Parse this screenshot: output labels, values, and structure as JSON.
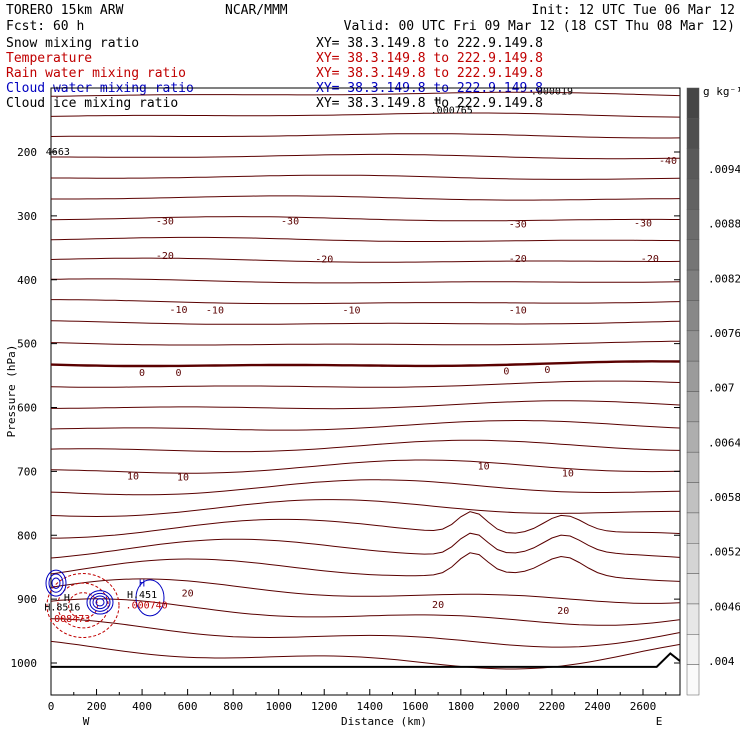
{
  "header": {
    "model": "TORERO  15km ARW",
    "center": "NCAR/MMM",
    "init": "Init: 12 UTC Tue 06 Mar 12",
    "fcst": "Fcst:   60 h",
    "valid": "Valid: 00 UTC Fri 09 Mar 12 (18 CST Thu 08 Mar 12)",
    "fields": [
      {
        "name": "Snow mixing ratio",
        "color": "#000000",
        "xy": "XY=  38.3.149.8 to 222.9.149.8"
      },
      {
        "name": "Temperature",
        "color": "#c00000",
        "xy": "XY=  38.3.149.8 to 222.9.149.8"
      },
      {
        "name": "Rain water mixing ratio",
        "color": "#c00000",
        "xy": "XY=  38.3.149.8 to 222.9.149.8"
      },
      {
        "name": "Cloud water mixing ratio",
        "color": "#0000c0",
        "xy": "XY=  38.3.149.8 to 222.9.149.8"
      },
      {
        "name": "Cloud ice mixing ratio",
        "color": "#000000",
        "xy": "XY=  38.3.149.8 to 222.9.149.8"
      }
    ]
  },
  "chart_data": {
    "type": "contour-cross-section",
    "xlabel": "Distance (km)",
    "ylabel": "Pressure (hPa)",
    "xlim": [
      0,
      2780
    ],
    "ylim": [
      1050,
      100
    ],
    "x_ticks": [
      0,
      200,
      400,
      600,
      800,
      1000,
      1200,
      1400,
      1600,
      1800,
      2000,
      2200,
      2400,
      2600
    ],
    "y_ticks": [
      200,
      300,
      400,
      500,
      600,
      700,
      800,
      900,
      1000
    ],
    "west_label": "W",
    "east_label": "E",
    "temperature_isotherms": [
      {
        "level": -30,
        "labels_at_x": [
          500,
          1050,
          2050,
          2600
        ]
      },
      {
        "level": -20,
        "labels_at_x": [
          500,
          1200,
          2050,
          2630
        ]
      },
      {
        "level": -10,
        "labels_at_x": [
          560,
          720,
          1320,
          2050
        ]
      },
      {
        "level": 0,
        "labels_at_x": [
          400,
          560,
          2000,
          2180
        ]
      },
      {
        "level": 10,
        "labels_at_x": [
          360,
          580,
          1900,
          2270
        ]
      },
      {
        "level": 20,
        "labels_at_x": [
          600,
          1700,
          2250
        ]
      },
      {
        "level": -40,
        "labels_at_x": [
          2720
        ]
      }
    ],
    "annotations": [
      {
        "text": "H",
        "x": 1700,
        "p": 125
      },
      {
        "text": ".000765",
        "x": 1760,
        "p": 140
      },
      {
        "text": ".000019",
        "x": 2200,
        "p": 110
      },
      {
        "text": "4663",
        "x": 30,
        "p": 205
      },
      {
        "text": "H",
        "x": 70,
        "p": 903
      },
      {
        "text": "H.8516",
        "x": 50,
        "p": 918
      },
      {
        "text": ".008473",
        "x": 80,
        "p": 936
      },
      {
        "text": "H",
        "x": 400,
        "p": 880
      },
      {
        "text": "H.451",
        "x": 400,
        "p": 898
      },
      {
        "text": ".000740",
        "x": 420,
        "p": 915
      }
    ],
    "colorbar": {
      "unit": "g kg⁻¹",
      "labels": [
        ".0094",
        ".0088",
        ".0082",
        ".0076",
        ".007",
        ".0064",
        ".0058",
        ".0052",
        ".0046",
        ".004"
      ]
    }
  }
}
